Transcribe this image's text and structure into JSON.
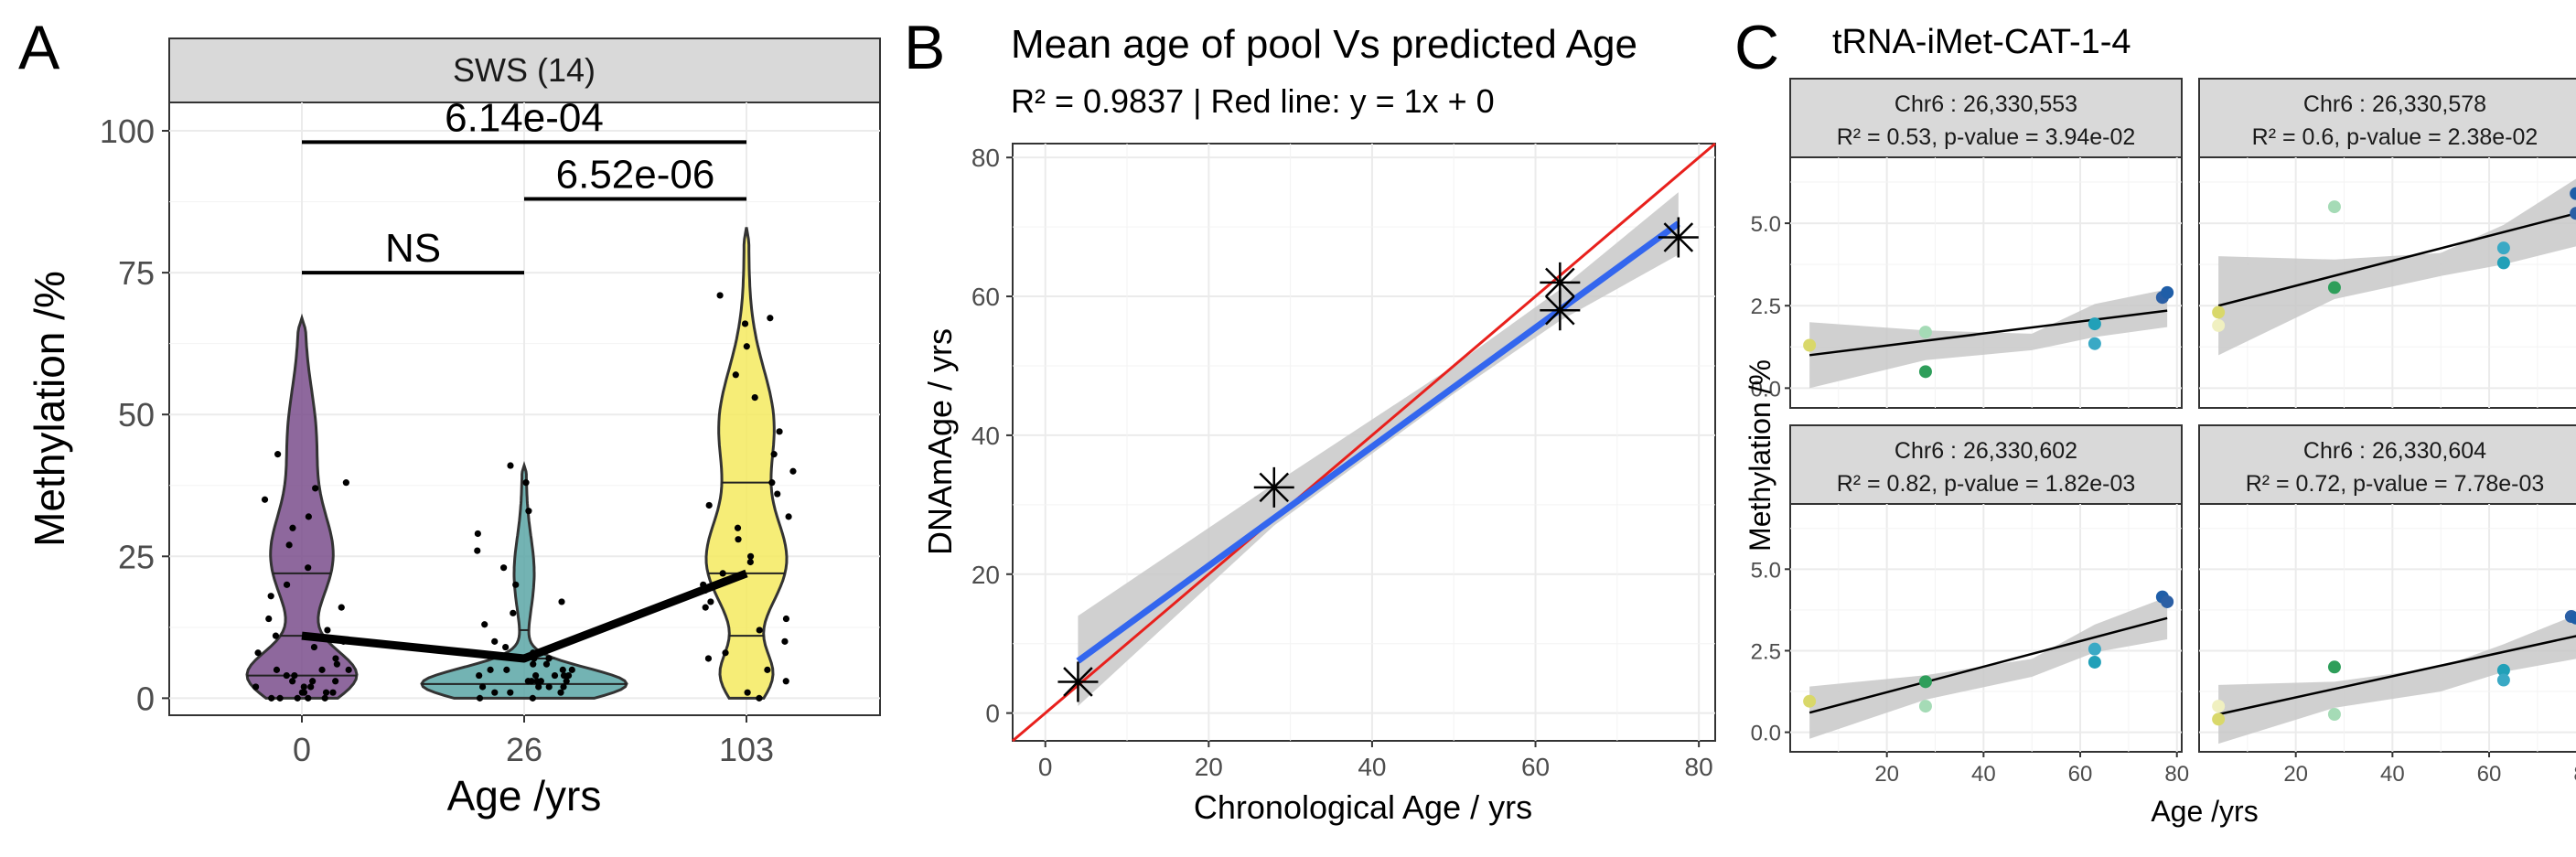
{
  "colors": {
    "violin_0": "#7a4d8c",
    "violin_26": "#5aa6a6",
    "violin_103": "#f4ea5f",
    "fit_line": "#3366ee",
    "identity_line": "#e8201c",
    "ci_band": "#c8c8c8",
    "strip_bg": "#d9d9d9",
    "grid": "#ebebeb"
  },
  "panels": {
    "a": {
      "letter": "A",
      "strip": "SWS (14)",
      "ylabel": "Methylation /%",
      "xlabel": "Age /yrs",
      "annotations": [
        "NS",
        "6.14e-04",
        "6.52e-06"
      ]
    },
    "b": {
      "letter": "B",
      "title": "Mean age of pool Vs predicted Age",
      "subtitle": "R² = 0.9837 | Red line: y = 1x + 0",
      "xlabel": "Chronological Age / yrs",
      "ylabel": "DNAmAge / yrs"
    },
    "c": {
      "letter": "C",
      "title": "tRNA-iMet-CAT-1-4",
      "xlabel": "Age /yrs",
      "ylabel": "Methylation /%"
    }
  },
  "chart_data": [
    {
      "id": "violin",
      "type": "violin",
      "categories": [
        "0",
        "26",
        "103"
      ],
      "ylim": [
        -3,
        105
      ],
      "yticks": [
        0,
        25,
        50,
        75,
        100
      ],
      "medians": [
        11,
        7,
        22
      ],
      "quartiles": [
        [
          4,
          22
        ],
        [
          2.5,
          12
        ],
        [
          11,
          38
        ]
      ],
      "max_values": [
        67,
        41,
        83
      ],
      "mean_line": [
        11,
        7,
        22
      ],
      "points": [
        [
          0,
          0,
          0,
          0,
          0,
          1,
          1,
          1,
          1,
          2,
          2,
          2,
          3,
          3,
          3,
          4,
          4,
          5,
          5,
          5,
          6,
          7,
          8,
          9,
          10,
          11,
          12,
          14,
          16,
          18,
          20,
          23,
          27,
          30,
          32,
          35,
          37,
          38,
          43
        ],
        [
          0,
          0,
          1,
          1,
          1,
          2,
          2,
          2,
          2,
          3,
          3,
          3,
          3,
          3,
          4,
          4,
          4,
          4,
          4,
          5,
          5,
          5,
          5,
          6,
          6,
          7,
          7,
          8,
          9,
          10,
          13,
          15,
          17,
          20,
          23,
          26,
          29,
          33,
          38,
          41
        ],
        [
          0,
          1,
          3,
          5,
          7,
          8,
          10,
          12,
          14,
          16,
          17,
          19,
          20,
          22,
          24,
          25,
          28,
          30,
          32,
          34,
          36,
          38,
          40,
          43,
          47,
          53,
          57,
          62,
          66,
          67,
          71
        ]
      ],
      "comparisons": [
        {
          "groups": [
            "0",
            "26"
          ],
          "label": "NS",
          "y": 75
        },
        {
          "groups": [
            "0",
            "103"
          ],
          "label": "6.14e-04",
          "y": 98
        },
        {
          "groups": [
            "26",
            "103"
          ],
          "label": "6.52e-06",
          "y": 88
        }
      ]
    },
    {
      "id": "scatter_fit",
      "type": "scatter",
      "xlim": [
        -4,
        82
      ],
      "ylim": [
        -4,
        82
      ],
      "xticks": [
        0,
        20,
        40,
        60,
        80
      ],
      "yticks": [
        0,
        20,
        40,
        60,
        80
      ],
      "points": [
        [
          4,
          4.5
        ],
        [
          28,
          32.5
        ],
        [
          63,
          58
        ],
        [
          63,
          62
        ],
        [
          77.5,
          68.5
        ]
      ],
      "fit": {
        "x": [
          4,
          77.5
        ],
        "y": [
          7.5,
          70.5
        ]
      },
      "ci": {
        "x": [
          4,
          28,
          50,
          63,
          77.5
        ],
        "lower": [
          1,
          27,
          46,
          56.5,
          66
        ],
        "upper": [
          14,
          33,
          50,
          61,
          75
        ]
      },
      "identity": {
        "slope": 1,
        "intercept": 0
      }
    },
    {
      "id": "facets",
      "type": "scatter",
      "xlim": [
        0,
        81
      ],
      "ylim": [
        -0.6,
        7.0
      ],
      "xticks": [
        20,
        40,
        60,
        80
      ],
      "yticks": [
        0.0,
        2.5,
        5.0
      ],
      "ytick_labels": [
        "0.0",
        "2.5",
        "5.0"
      ],
      "age_colors": {
        "4": "#d9d86a",
        "4b": "#f0f0c0",
        "28": "#2e9e5a",
        "28b": "#a5dbb6",
        "63": "#21a0b8",
        "63b": "#3aa9c5",
        "78": "#1f5ea8",
        "78b": "#2b5fa5"
      },
      "facets": [
        {
          "strip_line1": "Chr6 : 26,330,553",
          "strip_line2": "R² = 0.53, p-value = 3.94e-02",
          "points": [
            [
              4,
              1.3,
              "4"
            ],
            [
              28,
              1.7,
              "28b"
            ],
            [
              28,
              0.5,
              "28"
            ],
            [
              63,
              1.95,
              "63"
            ],
            [
              63,
              1.35,
              "63b"
            ],
            [
              77,
              2.75,
              "78b"
            ],
            [
              78,
              2.9,
              "78"
            ]
          ],
          "fit": [
            1.0,
            2.35
          ],
          "ci_lower": [
            0.0,
            0.85,
            1.15,
            1.55,
            1.85
          ],
          "ci_upper": [
            2.0,
            1.75,
            1.65,
            2.55,
            3.0
          ]
        },
        {
          "strip_line1": "Chr6 : 26,330,578",
          "strip_line2": "R² = 0.6, p-value = 2.38e-02",
          "points": [
            [
              4,
              2.3,
              "4"
            ],
            [
              4,
              1.9,
              "4b"
            ],
            [
              28,
              5.5,
              "28b"
            ],
            [
              28,
              3.05,
              "28"
            ],
            [
              63,
              4.25,
              "63b"
            ],
            [
              63,
              3.8,
              "63"
            ],
            [
              78,
              5.9,
              "78"
            ],
            [
              78,
              5.3,
              "78b"
            ]
          ],
          "fit": [
            2.5,
            5.3
          ],
          "ci_lower": [
            1.0,
            2.7,
            3.4,
            3.75,
            4.3
          ],
          "ci_upper": [
            4.0,
            3.9,
            4.1,
            4.95,
            6.35
          ]
        },
        {
          "strip_line1": "Chr6 : 26,330,602",
          "strip_line2": "R² = 0.82, p-value = 1.82e-03",
          "points": [
            [
              4,
              0.95,
              "4"
            ],
            [
              28,
              1.55,
              "28"
            ],
            [
              28,
              0.8,
              "28b"
            ],
            [
              63,
              2.55,
              "63b"
            ],
            [
              63,
              2.15,
              "63"
            ],
            [
              77,
              4.15,
              "78"
            ],
            [
              78,
              4.0,
              "78b"
            ]
          ],
          "fit": [
            0.6,
            3.5
          ],
          "ci_lower": [
            -0.2,
            1.0,
            1.7,
            2.45,
            2.85
          ],
          "ci_upper": [
            1.4,
            1.75,
            2.25,
            3.3,
            4.15
          ]
        },
        {
          "strip_line1": "Chr6 : 26,330,604",
          "strip_line2": "R² = 0.72, p-value = 7.78e-03",
          "points": [
            [
              4,
              0.8,
              "4b"
            ],
            [
              4,
              0.4,
              "4"
            ],
            [
              28,
              2.0,
              "28"
            ],
            [
              28,
              0.55,
              "28b"
            ],
            [
              63,
              1.9,
              "63"
            ],
            [
              63,
              1.6,
              "63b"
            ],
            [
              77,
              3.55,
              "78b"
            ],
            [
              78,
              3.5,
              "78"
            ]
          ],
          "fit": [
            0.55,
            2.95
          ],
          "ci_lower": [
            -0.35,
            0.75,
            1.25,
            1.85,
            2.25
          ],
          "ci_upper": [
            1.45,
            1.55,
            2.0,
            2.7,
            3.6
          ]
        }
      ]
    }
  ]
}
